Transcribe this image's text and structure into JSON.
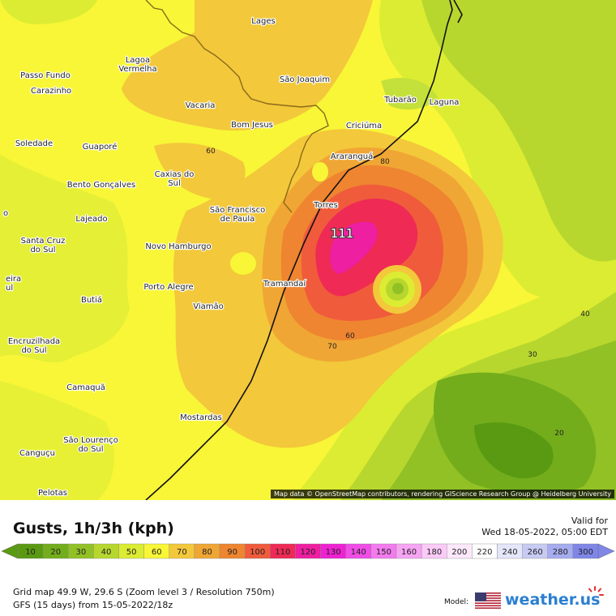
{
  "map": {
    "peak_value": "111",
    "contour_labels": [
      "80",
      "60",
      "70",
      "60",
      "40",
      "30",
      "20"
    ],
    "cities": [
      {
        "name": "Lages"
      },
      {
        "name": "Lagoa\nVermelha"
      },
      {
        "name": "Passo Fundo"
      },
      {
        "name": "Carazinho"
      },
      {
        "name": "São Joaquim"
      },
      {
        "name": "Tubarão"
      },
      {
        "name": "Laguna"
      },
      {
        "name": "Vacaria"
      },
      {
        "name": "Bom Jesus"
      },
      {
        "name": "Criciúma"
      },
      {
        "name": "Soledade"
      },
      {
        "name": "Guaporé"
      },
      {
        "name": "Araranguá"
      },
      {
        "name": "Caxias do\nSul"
      },
      {
        "name": "Bento Gonçalves"
      },
      {
        "name": "Torres"
      },
      {
        "name": "São Francisco\nde Paula"
      },
      {
        "name": "Lajeado"
      },
      {
        "name": "Santa Cruz\ndo Sul"
      },
      {
        "name": "Novo Hamburgo"
      },
      {
        "name": "Tramandaí"
      },
      {
        "name": "Porto Alegre"
      },
      {
        "name": "Butiá"
      },
      {
        "name": "Viamão"
      },
      {
        "name": "Encruzilhada\ndo Sul"
      },
      {
        "name": "Camaquã"
      },
      {
        "name": "Mostardas"
      },
      {
        "name": "São Lourenço\ndo Sul"
      },
      {
        "name": "Canguçu"
      },
      {
        "name": "Pelotas"
      },
      {
        "name": "eira\nul"
      },
      {
        "name": "o"
      }
    ],
    "attribution": "Map data © OpenStreetMap contributors, rendering GIScience Research Group @ Heidelberg University"
  },
  "legend": {
    "title": "Gusts, 1h/3h (kph)",
    "valid_label": "Valid for",
    "valid_time": "Wed 18-05-2022, 05:00 EDT",
    "scale": [
      {
        "value": "10",
        "color": "#5a9a12"
      },
      {
        "value": "20",
        "color": "#73ad1c"
      },
      {
        "value": "30",
        "color": "#92c126"
      },
      {
        "value": "40",
        "color": "#b7d72e"
      },
      {
        "value": "50",
        "color": "#dcec32"
      },
      {
        "value": "60",
        "color": "#f8f637"
      },
      {
        "value": "70",
        "color": "#f3c83a"
      },
      {
        "value": "80",
        "color": "#f0a634"
      },
      {
        "value": "90",
        "color": "#ef8530"
      },
      {
        "value": "100",
        "color": "#f05b3c"
      },
      {
        "value": "110",
        "color": "#ee2a55"
      },
      {
        "value": "120",
        "color": "#ee1fa0"
      },
      {
        "value": "130",
        "color": "#ee22d2"
      },
      {
        "value": "140",
        "color": "#f04de6"
      },
      {
        "value": "150",
        "color": "#f37bee"
      },
      {
        "value": "160",
        "color": "#f7a4f3"
      },
      {
        "value": "180",
        "color": "#fbcaf7"
      },
      {
        "value": "200",
        "color": "#fde8fb"
      },
      {
        "value": "220",
        "color": "#ffffff"
      },
      {
        "value": "240",
        "color": "#e4e6fa"
      },
      {
        "value": "260",
        "color": "#c7cbf3"
      },
      {
        "value": "280",
        "color": "#a6acef"
      },
      {
        "value": "300",
        "color": "#7f86e8"
      }
    ]
  },
  "footer": {
    "grid": "Grid map 49.9 W, 29.6 S (Zoom level 3 / Resolution 750m)",
    "model_run": "GFS (15 days) from  15-05-2022/18z",
    "model_label": "Model:",
    "brand": "weather.us"
  }
}
